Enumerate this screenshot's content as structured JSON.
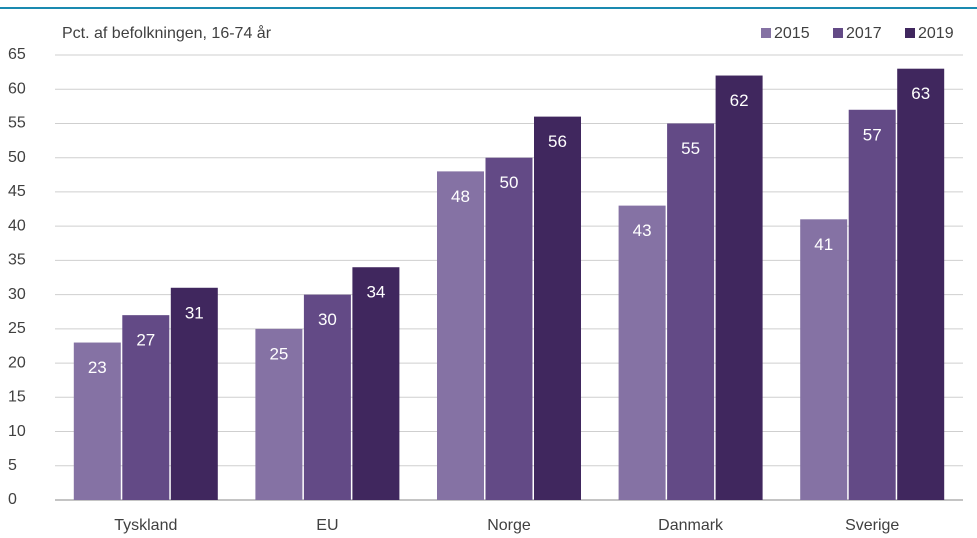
{
  "chart_data": {
    "type": "bar",
    "subtitle": "Pct. af befolkningen, 16-74 år",
    "categories": [
      "Tyskland",
      "EU",
      "Norge",
      "Danmark",
      "Sverige"
    ],
    "series": [
      {
        "name": "2015",
        "color": "#8572a4",
        "values": [
          23,
          25,
          48,
          43,
          41
        ]
      },
      {
        "name": "2017",
        "color": "#634a86",
        "values": [
          27,
          30,
          50,
          55,
          57
        ]
      },
      {
        "name": "2019",
        "color": "#40275e",
        "values": [
          31,
          34,
          56,
          62,
          63
        ]
      }
    ],
    "ylim": [
      0,
      65
    ],
    "yticks": [
      0,
      5,
      10,
      15,
      20,
      25,
      30,
      35,
      40,
      45,
      50,
      55,
      60,
      65
    ],
    "grid": true,
    "legend": "top-right",
    "value_labels_color": "#ffffff"
  }
}
